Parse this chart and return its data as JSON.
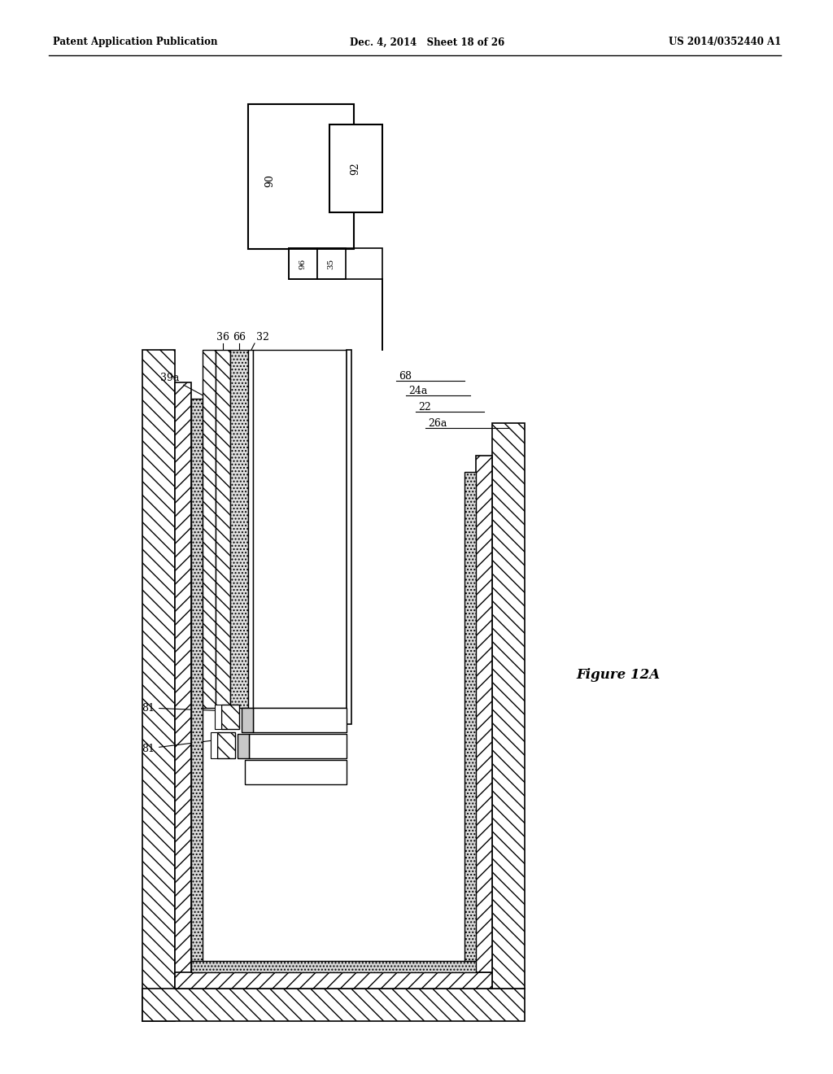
{
  "header_left": "Patent Application Publication",
  "header_mid": "Dec. 4, 2014   Sheet 18 of 26",
  "header_right": "US 2014/0352440 A1",
  "figure_label": "Figure 12A",
  "bg_color": "#ffffff",
  "lc": "#000000"
}
